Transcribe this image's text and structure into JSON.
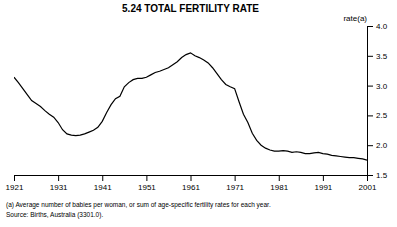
{
  "chart_data": {
    "type": "line",
    "title": "5.24   TOTAL FERTILITY RATE",
    "ylabel": "rate(a)",
    "annotations": [
      "(a) Average number of babies per woman, or sum of age-specific fertility rates for each year.",
      "Source:  Births, Australia (3301.0)."
    ],
    "x": [
      1921,
      1922,
      1923,
      1924,
      1925,
      1926,
      1927,
      1928,
      1929,
      1930,
      1931,
      1932,
      1933,
      1934,
      1935,
      1936,
      1937,
      1938,
      1939,
      1940,
      1941,
      1942,
      1943,
      1944,
      1945,
      1946,
      1947,
      1948,
      1949,
      1950,
      1951,
      1952,
      1953,
      1954,
      1955,
      1956,
      1957,
      1958,
      1959,
      1960,
      1961,
      1962,
      1963,
      1964,
      1965,
      1966,
      1967,
      1968,
      1969,
      1970,
      1971,
      1972,
      1973,
      1974,
      1975,
      1976,
      1977,
      1978,
      1979,
      1980,
      1981,
      1982,
      1983,
      1984,
      1985,
      1986,
      1987,
      1988,
      1989,
      1990,
      1991,
      1992,
      1993,
      1994,
      1995,
      1996,
      1997,
      1998,
      1999,
      2000,
      2001
    ],
    "values": [
      3.14,
      3.05,
      2.95,
      2.85,
      2.75,
      2.7,
      2.65,
      2.58,
      2.52,
      2.47,
      2.38,
      2.26,
      2.19,
      2.17,
      2.16,
      2.17,
      2.19,
      2.22,
      2.25,
      2.3,
      2.4,
      2.55,
      2.68,
      2.78,
      2.82,
      2.98,
      3.05,
      3.1,
      3.12,
      3.12,
      3.14,
      3.18,
      3.22,
      3.24,
      3.27,
      3.3,
      3.35,
      3.4,
      3.47,
      3.52,
      3.55,
      3.5,
      3.47,
      3.43,
      3.38,
      3.3,
      3.2,
      3.1,
      3.02,
      2.98,
      2.95,
      2.73,
      2.52,
      2.38,
      2.2,
      2.08,
      2.0,
      1.95,
      1.92,
      1.9,
      1.9,
      1.91,
      1.9,
      1.88,
      1.89,
      1.88,
      1.86,
      1.86,
      1.87,
      1.88,
      1.86,
      1.85,
      1.83,
      1.82,
      1.81,
      1.8,
      1.79,
      1.79,
      1.78,
      1.77,
      1.75
    ],
    "color": "#000000",
    "xlim": [
      1921,
      2001
    ],
    "ylim": [
      1.5,
      4.0
    ],
    "xticks": [
      1921,
      1931,
      1941,
      1951,
      1961,
      1971,
      1981,
      1991,
      2001
    ],
    "yticks": [
      1.5,
      {
        "value": 2.0,
        "label": "2.0"
      },
      2.5,
      {
        "value": 3.0,
        "label": "3.0"
      },
      3.5,
      {
        "value": 4.0,
        "label": "4.0"
      }
    ]
  }
}
